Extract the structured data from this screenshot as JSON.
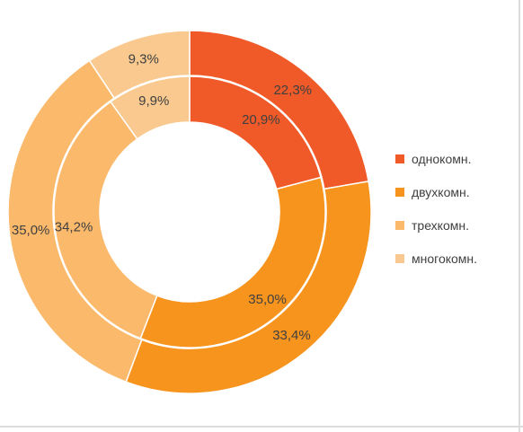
{
  "chart_data": {
    "type": "pie",
    "variant": "double-donut",
    "categories": [
      "однокомн.",
      "двухкомн.",
      "трехкомн.",
      "многокомн."
    ],
    "colors": [
      "#f05a28",
      "#f7941d",
      "#fbb96b",
      "#f9c98f"
    ],
    "series": [
      {
        "ring": "inner",
        "values": [
          20.9,
          35.0,
          34.2,
          9.9
        ],
        "labels": [
          "20,9%",
          "35,0%",
          "34,2%",
          "9,9%"
        ]
      },
      {
        "ring": "outer",
        "values": [
          22.3,
          33.4,
          35.0,
          9.3
        ],
        "labels": [
          "22,3%",
          "33,4%",
          "35,0%",
          "9,3%"
        ]
      }
    ],
    "legend_position": "right"
  },
  "legend": {
    "items": [
      {
        "label": "однокомн."
      },
      {
        "label": "двухкомн."
      },
      {
        "label": "трехкомн."
      },
      {
        "label": "многокомн."
      }
    ]
  }
}
